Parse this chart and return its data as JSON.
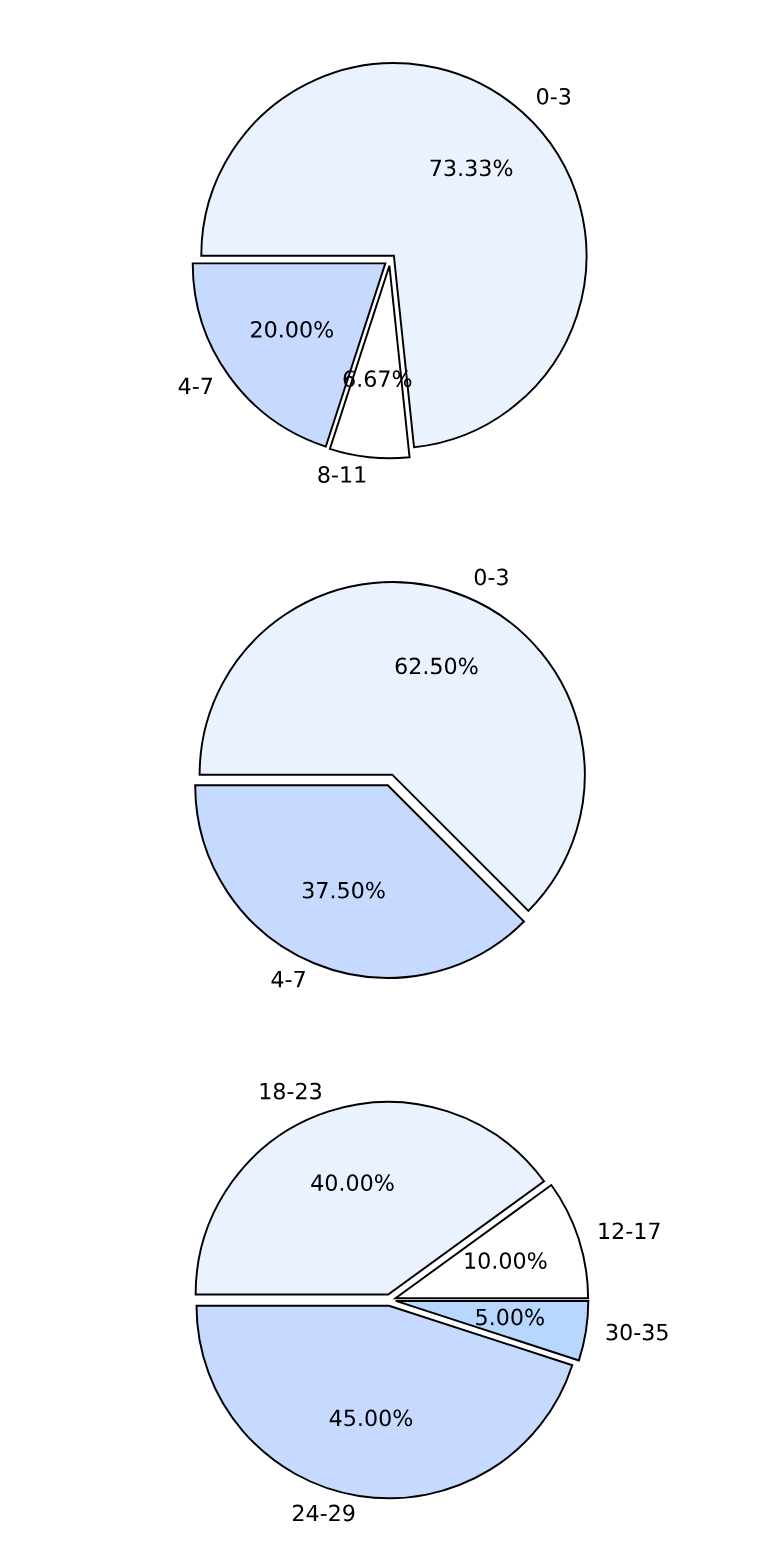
{
  "chart_data": [
    {
      "type": "pie",
      "categories": [
        "0-3",
        "8-11",
        "4-7"
      ],
      "values": [
        73.33,
        6.67,
        20.0
      ],
      "value_labels": [
        "73.33%",
        "6.67%",
        "20.00%"
      ],
      "colors": [
        "#ebf2ff",
        "#ffffff",
        "#c6daff"
      ]
    },
    {
      "type": "pie",
      "categories": [
        "0-3",
        "4-7"
      ],
      "values": [
        62.5,
        37.5
      ],
      "value_labels": [
        "62.50%",
        "37.50%"
      ],
      "colors": [
        "#ebf2ff",
        "#c6daff"
      ]
    },
    {
      "type": "pie",
      "categories": [
        "18-23",
        "12-17",
        "30-35",
        "24-29"
      ],
      "values": [
        40.0,
        10.0,
        5.0,
        45.0
      ],
      "value_labels": [
        "40.00%",
        "10.00%",
        "5.00%",
        "45.00%"
      ],
      "colors": [
        "#ebf2ff",
        "#ffffff",
        "#b8d7ff",
        "#c6daff"
      ]
    }
  ]
}
